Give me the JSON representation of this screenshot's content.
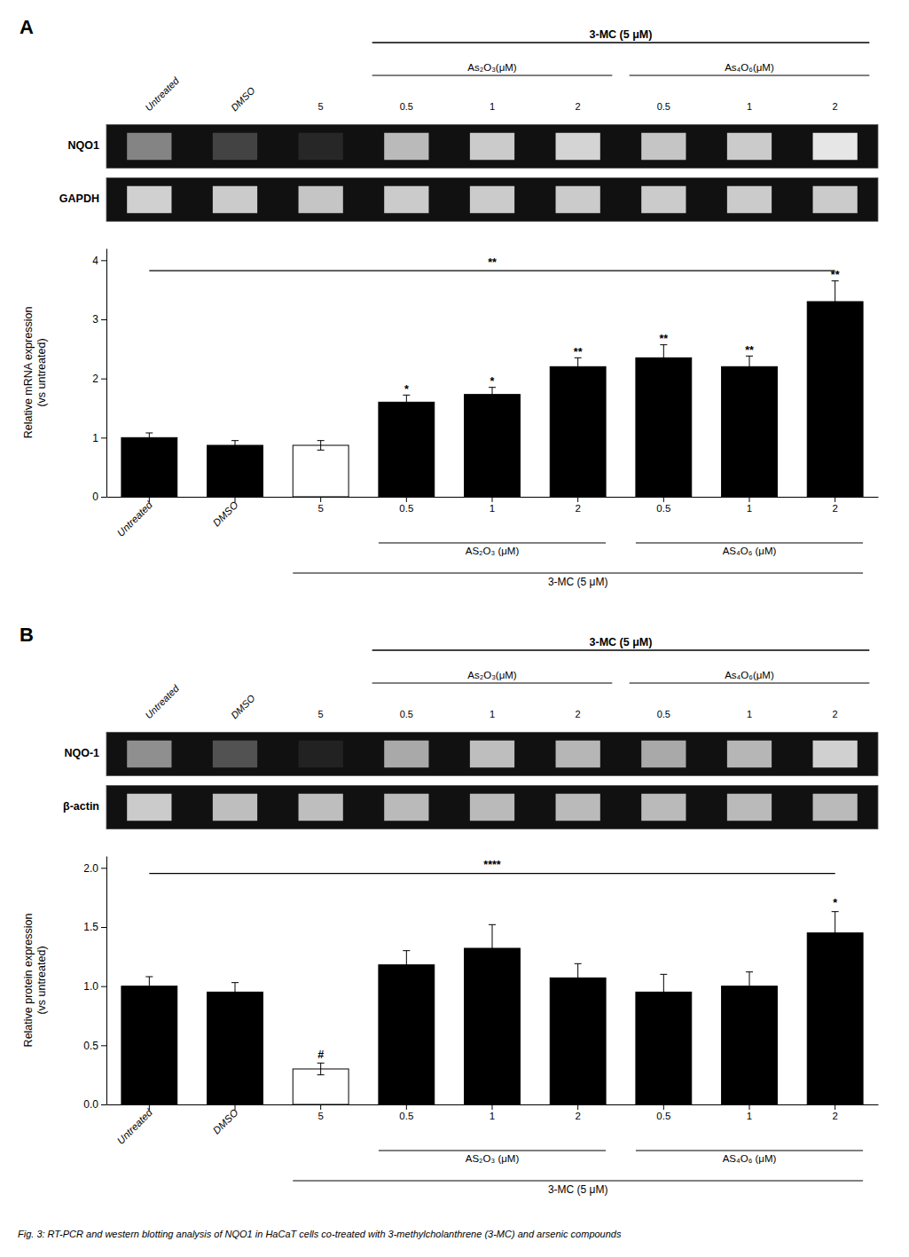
{
  "caption": "Fig. 3: RT-PCR and western blotting analysis of NQO1 in HaCaT cells co-treated with 3-methylcholanthrene (3-MC) and arsenic compounds",
  "chart_data": [
    {
      "type": "heatmap",
      "title": "A",
      "categories": [
        "Untreated",
        "DMSO",
        "5",
        "0.5",
        "1",
        "2",
        "0.5",
        "1",
        "2"
      ],
      "rows": [
        "NQO1",
        "GAPDH"
      ],
      "cells": [
        [
          0.55,
          0.25,
          0.12,
          0.8,
          0.88,
          0.92,
          0.85,
          0.88,
          1.0
        ],
        [
          0.9,
          0.88,
          0.85,
          0.88,
          0.88,
          0.88,
          0.88,
          0.88,
          0.88
        ]
      ],
      "group_labels": [
        "As₂O₃(μM)",
        "As₄O₆(μM)",
        "3-MC (5 μM)"
      ]
    },
    {
      "type": "bar",
      "categories": [
        "Untreated",
        "DMSO",
        "5",
        "0.5",
        "1",
        "2",
        "0.5",
        "1",
        "2"
      ],
      "values": [
        1.0,
        0.87,
        0.87,
        1.6,
        1.73,
        2.2,
        2.35,
        2.2,
        3.3
      ],
      "errors": [
        0.08,
        0.08,
        0.08,
        0.12,
        0.12,
        0.15,
        0.22,
        0.18,
        0.35
      ],
      "colors": [
        "black",
        "black",
        "white",
        "black",
        "black",
        "black",
        "black",
        "black",
        "black"
      ],
      "significance": [
        null,
        null,
        null,
        "*",
        "*",
        "**",
        "**",
        "**",
        "**"
      ],
      "ylabel": "Relative mRNA expression\n(vs untreated)",
      "ylim": [
        0,
        4.2
      ],
      "yticks": [
        0,
        1,
        2,
        3,
        4
      ],
      "bracket_label": "**",
      "group_labels": [
        "AS₂O₃ (μM)",
        "AS₄O₆ (μM)",
        "3-MC (5 μM)"
      ]
    },
    {
      "type": "heatmap",
      "title": "B",
      "categories": [
        "Untreated",
        "DMSO",
        "5",
        "0.5",
        "1",
        "2",
        "0.5",
        "1",
        "2"
      ],
      "rows": [
        "NQO-1",
        "β-actin"
      ],
      "cells": [
        [
          0.6,
          0.32,
          0.1,
          0.72,
          0.82,
          0.78,
          0.72,
          0.78,
          0.9
        ],
        [
          0.88,
          0.82,
          0.82,
          0.8,
          0.8,
          0.8,
          0.8,
          0.8,
          0.8
        ]
      ],
      "group_labels": [
        "As₂O₃(μM)",
        "As₄O₆(μM)",
        "3-MC (5 μM)"
      ]
    },
    {
      "type": "bar",
      "categories": [
        "Untreated",
        "DMSO",
        "5",
        "0.5",
        "1",
        "2",
        "0.5",
        "1",
        "2"
      ],
      "values": [
        1.0,
        0.95,
        0.3,
        1.18,
        1.32,
        1.07,
        0.95,
        1.0,
        1.45
      ],
      "errors": [
        0.08,
        0.08,
        0.05,
        0.12,
        0.2,
        0.12,
        0.15,
        0.12,
        0.18
      ],
      "colors": [
        "black",
        "black",
        "white",
        "black",
        "black",
        "black",
        "black",
        "black",
        "black"
      ],
      "significance": [
        null,
        null,
        "#",
        null,
        null,
        null,
        null,
        null,
        "*"
      ],
      "ylabel": "Relative protein expression\n(vs untreated)",
      "ylim": [
        0,
        2.1
      ],
      "yticks": [
        {
          "value": 0,
          "label": "0.0"
        },
        0.5,
        {
          "value": 1,
          "label": "1.0"
        },
        1.5,
        {
          "value": 2,
          "label": "2.0"
        }
      ],
      "bracket_label": "****",
      "group_labels": [
        "AS₂O₃ (μM)",
        "AS₄O₆ (μM)",
        "3-MC (5 μM)"
      ]
    }
  ]
}
